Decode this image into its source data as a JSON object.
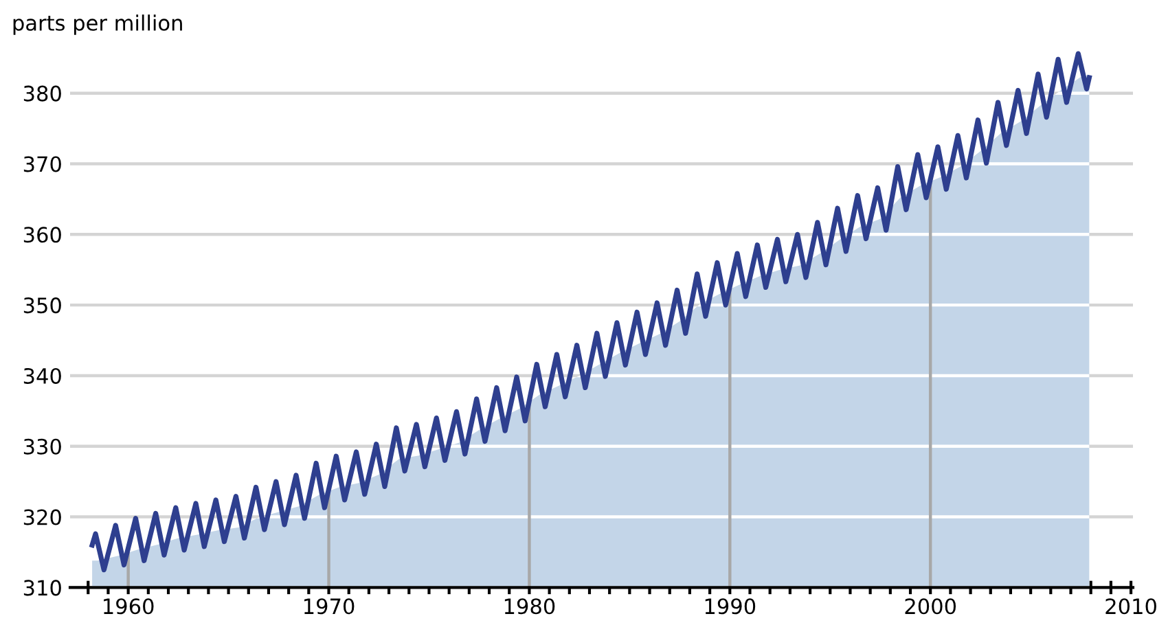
{
  "chart_data": {
    "type": "line",
    "ylabel": "parts per million",
    "xlim": [
      1957.1,
      2010.1
    ],
    "ylim": [
      310,
      387
    ],
    "xticks": [
      {
        "value": 1958,
        "label": null
      },
      {
        "value": 1959,
        "label": null
      },
      1960,
      {
        "value": 1961,
        "label": null
      },
      {
        "value": 1962,
        "label": null
      },
      {
        "value": 1963,
        "label": null
      },
      {
        "value": 1964,
        "label": null
      },
      {
        "value": 1965,
        "label": null
      },
      {
        "value": 1966,
        "label": null
      },
      {
        "value": 1967,
        "label": null
      },
      {
        "value": 1968,
        "label": null
      },
      {
        "value": 1969,
        "label": null
      },
      1970,
      {
        "value": 1971,
        "label": null
      },
      {
        "value": 1972,
        "label": null
      },
      {
        "value": 1973,
        "label": null
      },
      {
        "value": 1974,
        "label": null
      },
      {
        "value": 1975,
        "label": null
      },
      {
        "value": 1976,
        "label": null
      },
      {
        "value": 1977,
        "label": null
      },
      {
        "value": 1978,
        "label": null
      },
      {
        "value": 1979,
        "label": null
      },
      1980,
      {
        "value": 1981,
        "label": null
      },
      {
        "value": 1982,
        "label": null
      },
      {
        "value": 1983,
        "label": null
      },
      {
        "value": 1984,
        "label": null
      },
      {
        "value": 1985,
        "label": null
      },
      {
        "value": 1986,
        "label": null
      },
      {
        "value": 1987,
        "label": null
      },
      {
        "value": 1988,
        "label": null
      },
      {
        "value": 1989,
        "label": null
      },
      1990,
      {
        "value": 1991,
        "label": null
      },
      {
        "value": 1992,
        "label": null
      },
      {
        "value": 1993,
        "label": null
      },
      {
        "value": 1994,
        "label": null
      },
      {
        "value": 1995,
        "label": null
      },
      {
        "value": 1996,
        "label": null
      },
      {
        "value": 1997,
        "label": null
      },
      {
        "value": 1998,
        "label": null
      },
      {
        "value": 1999,
        "label": null
      },
      2000,
      {
        "value": 2001,
        "label": null
      },
      {
        "value": 2002,
        "label": null
      },
      {
        "value": 2003,
        "label": null
      },
      {
        "value": 2004,
        "label": null
      },
      {
        "value": 2005,
        "label": null
      },
      {
        "value": 2006,
        "label": null
      },
      {
        "value": 2007,
        "label": null
      },
      {
        "value": 2008,
        "label": null
      },
      {
        "value": 2009,
        "label": null
      },
      2010
    ],
    "yticks": [
      310,
      320,
      330,
      340,
      350,
      360,
      370,
      380
    ],
    "grid": true,
    "series": [
      {
        "type": "area",
        "color": "#c3d5e8",
        "x": [
          1958.2,
          1958.5,
          1959.5,
          1960.5,
          1961.5,
          1962.5,
          1963.5,
          1964.5,
          1965.5,
          1966.5,
          1967.5,
          1968.5,
          1969.5,
          1970.5,
          1971.5,
          1972.5,
          1973.5,
          1974.5,
          1975.5,
          1976.5,
          1977.5,
          1978.5,
          1979.5,
          1980.5,
          1981.5,
          1982.5,
          1983.5,
          1984.5,
          1985.5,
          1986.5,
          1987.5,
          1988.5,
          1989.5,
          1990.5,
          1991.5,
          1992.5,
          1993.5,
          1994.5,
          1995.5,
          1996.5,
          1997.5,
          1998.5,
          1999.5,
          2000.5,
          2001.5,
          2002.5,
          2003.5,
          2004.5,
          2005.5,
          2006.5,
          2007.5,
          2007.92
        ],
        "values": [
          313.8,
          313.8,
          314.5,
          315.4,
          316.1,
          317.0,
          317.5,
          318.1,
          318.5,
          319.9,
          320.7,
          321.5,
          323.1,
          324.2,
          324.8,
          326.0,
          328.2,
          328.7,
          329.6,
          330.5,
          332.3,
          333.9,
          335.3,
          337.3,
          338.6,
          340.0,
          341.6,
          343.2,
          344.6,
          345.9,
          347.7,
          350.1,
          351.6,
          352.9,
          354.1,
          355.0,
          355.6,
          357.3,
          359.3,
          361.1,
          362.2,
          365.2,
          366.9,
          368.1,
          369.6,
          371.8,
          374.3,
          376.0,
          378.3,
          380.4,
          382.3,
          382.6
        ]
      },
      {
        "color": "#2e3f8f",
        "x": [
          1958.2,
          1958.37,
          1958.79,
          1959.37,
          1959.79,
          1960.37,
          1960.79,
          1961.37,
          1961.79,
          1962.37,
          1962.79,
          1963.37,
          1963.79,
          1964.37,
          1964.79,
          1965.37,
          1965.79,
          1966.37,
          1966.79,
          1967.37,
          1967.79,
          1968.37,
          1968.79,
          1969.37,
          1969.79,
          1970.37,
          1970.79,
          1971.37,
          1971.79,
          1972.37,
          1972.79,
          1973.37,
          1973.79,
          1974.37,
          1974.79,
          1975.37,
          1975.79,
          1976.37,
          1976.79,
          1977.37,
          1977.79,
          1978.37,
          1978.79,
          1979.37,
          1979.79,
          1980.37,
          1980.79,
          1981.37,
          1981.79,
          1982.37,
          1982.79,
          1983.37,
          1983.79,
          1984.37,
          1984.79,
          1985.37,
          1985.79,
          1986.37,
          1986.79,
          1987.37,
          1987.79,
          1988.37,
          1988.79,
          1989.37,
          1989.79,
          1990.37,
          1990.79,
          1991.37,
          1991.79,
          1992.37,
          1992.79,
          1993.37,
          1993.79,
          1994.37,
          1994.79,
          1995.37,
          1995.79,
          1996.37,
          1996.79,
          1997.37,
          1997.79,
          1998.37,
          1998.79,
          1999.37,
          1999.79,
          2000.37,
          2000.79,
          2001.37,
          2001.79,
          2002.37,
          2002.79,
          2003.37,
          2003.79,
          2004.37,
          2004.79,
          2005.37,
          2005.79,
          2006.37,
          2006.79,
          2007.37,
          2007.79,
          2007.92
        ],
        "values": [
          316.0,
          317.6,
          312.5,
          318.8,
          313.2,
          319.8,
          313.8,
          320.5,
          314.6,
          321.3,
          315.3,
          321.9,
          315.8,
          322.4,
          316.5,
          322.9,
          317.0,
          324.2,
          318.2,
          325.0,
          318.9,
          325.9,
          319.8,
          327.6,
          321.3,
          328.6,
          322.4,
          329.2,
          323.2,
          330.3,
          324.3,
          332.6,
          326.5,
          333.1,
          327.1,
          334.0,
          328.0,
          334.9,
          328.9,
          336.7,
          330.7,
          338.3,
          332.2,
          339.8,
          333.6,
          341.6,
          335.6,
          343.0,
          337.0,
          344.3,
          338.3,
          346.0,
          339.9,
          347.5,
          341.5,
          349.0,
          343.0,
          350.3,
          344.3,
          352.1,
          346.0,
          354.4,
          348.4,
          356.0,
          350.0,
          357.3,
          351.2,
          358.5,
          352.5,
          359.3,
          353.3,
          360.0,
          353.9,
          361.7,
          355.7,
          363.7,
          357.6,
          365.5,
          359.4,
          366.6,
          360.6,
          369.6,
          363.5,
          371.3,
          365.2,
          372.4,
          366.4,
          374.0,
          368.0,
          376.2,
          370.1,
          378.7,
          372.6,
          380.4,
          374.3,
          382.7,
          376.6,
          384.8,
          378.7,
          385.6,
          380.6,
          382.2
        ]
      }
    ]
  }
}
